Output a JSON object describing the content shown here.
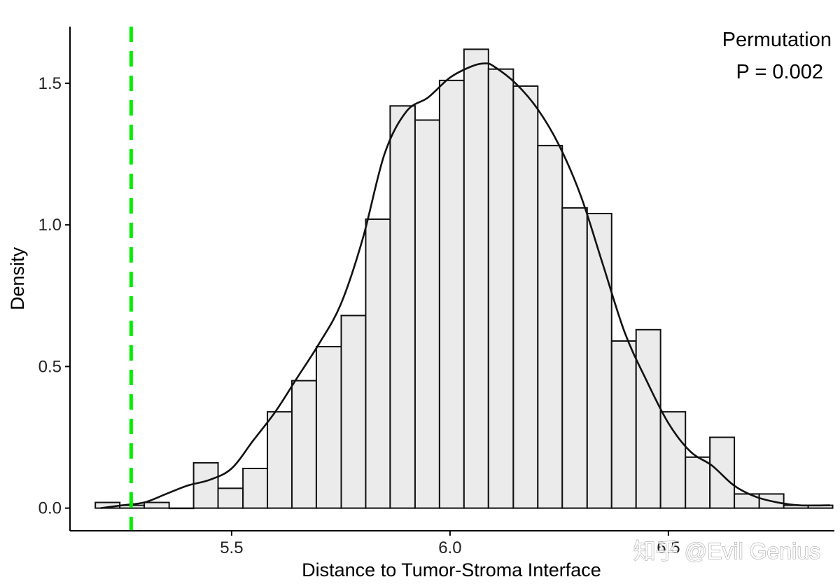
{
  "chart_data": {
    "type": "bar",
    "subtype": "histogram-with-density",
    "title": "",
    "xlabel": "Distance to Tumor-Stroma Interface",
    "ylabel": "Density",
    "xlim": [
      5.13,
      6.88
    ],
    "ylim": [
      -0.08,
      1.7
    ],
    "x_ticks": [
      5.5,
      6.0,
      6.5
    ],
    "x_tick_labels": [
      "5.5",
      "6.0",
      "6.5"
    ],
    "y_ticks": [
      0.0,
      0.5,
      1.0,
      1.5
    ],
    "y_tick_labels": [
      "0.0",
      "0.5",
      "1.0",
      "1.5"
    ],
    "grid": false,
    "bin_width": 0.0563,
    "bins": [
      {
        "x0": 5.188,
        "x1": 5.244,
        "density": 0.02
      },
      {
        "x0": 5.244,
        "x1": 5.3,
        "density": 0.01
      },
      {
        "x0": 5.3,
        "x1": 5.357,
        "density": 0.02
      },
      {
        "x0": 5.357,
        "x1": 5.413,
        "density": 0.0
      },
      {
        "x0": 5.413,
        "x1": 5.469,
        "density": 0.16
      },
      {
        "x0": 5.469,
        "x1": 5.526,
        "density": 0.07
      },
      {
        "x0": 5.526,
        "x1": 5.582,
        "density": 0.14
      },
      {
        "x0": 5.582,
        "x1": 5.638,
        "density": 0.34
      },
      {
        "x0": 5.638,
        "x1": 5.694,
        "density": 0.45
      },
      {
        "x0": 5.694,
        "x1": 5.751,
        "density": 0.57
      },
      {
        "x0": 5.751,
        "x1": 5.807,
        "density": 0.68
      },
      {
        "x0": 5.807,
        "x1": 5.863,
        "density": 1.02
      },
      {
        "x0": 5.863,
        "x1": 5.92,
        "density": 1.42
      },
      {
        "x0": 5.92,
        "x1": 5.976,
        "density": 1.37
      },
      {
        "x0": 5.976,
        "x1": 6.032,
        "density": 1.51
      },
      {
        "x0": 6.032,
        "x1": 6.088,
        "density": 1.62
      },
      {
        "x0": 6.088,
        "x1": 6.145,
        "density": 1.55
      },
      {
        "x0": 6.145,
        "x1": 6.201,
        "density": 1.49
      },
      {
        "x0": 6.201,
        "x1": 6.257,
        "density": 1.28
      },
      {
        "x0": 6.257,
        "x1": 6.314,
        "density": 1.06
      },
      {
        "x0": 6.314,
        "x1": 6.37,
        "density": 1.04
      },
      {
        "x0": 6.37,
        "x1": 6.426,
        "density": 0.59
      },
      {
        "x0": 6.426,
        "x1": 6.482,
        "density": 0.63
      },
      {
        "x0": 6.482,
        "x1": 6.539,
        "density": 0.34
      },
      {
        "x0": 6.539,
        "x1": 6.595,
        "density": 0.18
      },
      {
        "x0": 6.595,
        "x1": 6.651,
        "density": 0.25
      },
      {
        "x0": 6.651,
        "x1": 6.708,
        "density": 0.05
      },
      {
        "x0": 6.708,
        "x1": 6.764,
        "density": 0.05
      },
      {
        "x0": 6.764,
        "x1": 6.82,
        "density": 0.01
      },
      {
        "x0": 6.82,
        "x1": 6.876,
        "density": 0.01
      }
    ],
    "density_curve": {
      "x": [
        5.2,
        5.25,
        5.3,
        5.35,
        5.4,
        5.45,
        5.5,
        5.55,
        5.6,
        5.65,
        5.7,
        5.75,
        5.8,
        5.85,
        5.9,
        5.95,
        6.0,
        6.05,
        6.08,
        6.1,
        6.15,
        6.2,
        6.25,
        6.3,
        6.35,
        6.4,
        6.45,
        6.5,
        6.55,
        6.6,
        6.65,
        6.7,
        6.75,
        6.8,
        6.87
      ],
      "y": [
        0.0,
        0.01,
        0.02,
        0.05,
        0.08,
        0.1,
        0.14,
        0.24,
        0.34,
        0.46,
        0.58,
        0.72,
        0.95,
        1.25,
        1.4,
        1.45,
        1.52,
        1.56,
        1.57,
        1.56,
        1.5,
        1.41,
        1.28,
        1.1,
        0.86,
        0.62,
        0.45,
        0.3,
        0.2,
        0.15,
        0.08,
        0.04,
        0.02,
        0.01,
        0.01
      ]
    },
    "observed_line": {
      "x": 5.27,
      "color": "#00ee00",
      "style": "dashed"
    },
    "bar_fill": "#ebebeb",
    "bar_stroke": "#111111",
    "annotation": [
      "Permutation",
      "P = 0.002"
    ]
  },
  "watermark": "知乎 @Evil Genius"
}
